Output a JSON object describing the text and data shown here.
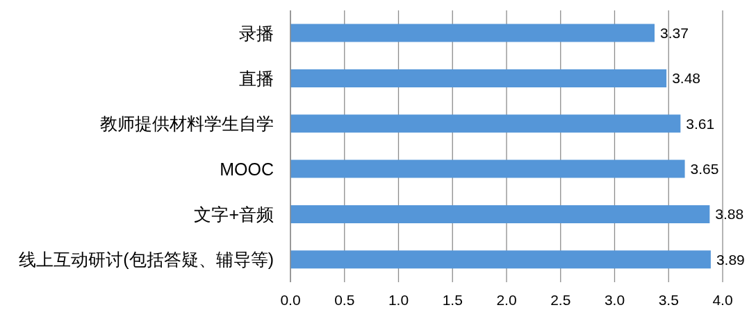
{
  "chart_data": {
    "type": "bar",
    "orientation": "horizontal",
    "categories": [
      "录播",
      "直播",
      "教师提供材料学生自学",
      "MOOC",
      "文字+音频",
      "线上互动研讨(包括答疑、辅导等)"
    ],
    "values": [
      3.37,
      3.48,
      3.61,
      3.65,
      3.88,
      3.89
    ],
    "color": "#5596d8",
    "xlim": [
      0,
      4
    ],
    "xticks": [
      {
        "value": 0,
        "label": "0.0"
      },
      {
        "value": 0.5,
        "label": "0.5"
      },
      {
        "value": 1,
        "label": "1.0"
      },
      {
        "value": 1.5,
        "label": "1.5"
      },
      {
        "value": 2,
        "label": "2.0"
      },
      {
        "value": 2.5,
        "label": "2.5"
      },
      {
        "value": 3,
        "label": "3.0"
      },
      {
        "value": 3.5,
        "label": "3.5"
      },
      {
        "value": 4,
        "label": "4.0"
      }
    ],
    "grid": "x",
    "data_labels": true
  }
}
